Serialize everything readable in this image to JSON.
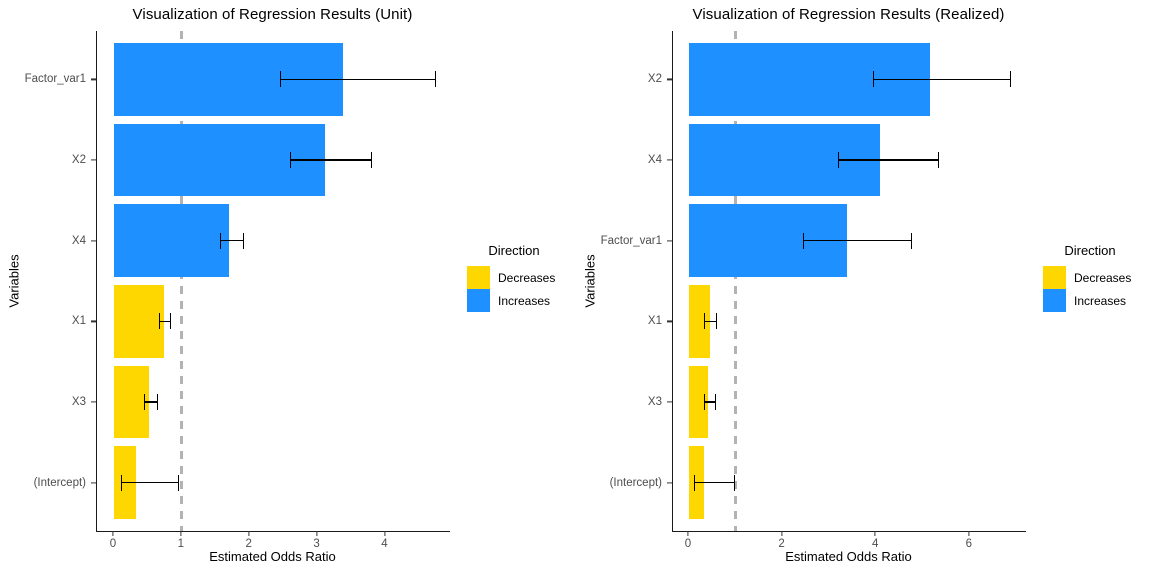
{
  "colors": {
    "Decreases": "#FFD700",
    "Increases": "#1E90FF",
    "reference_line": "#B3B3B3",
    "axis_line": "#1A1A1A",
    "tick_text": "#4D4D4D"
  },
  "chart_data": [
    {
      "type": "bar",
      "orientation": "horizontal",
      "title": "Visualization of Regression Results (Unit)",
      "xlabel": "Estimated Odds Ratio",
      "ylabel": "Variables",
      "legend_title": "Direction",
      "legend_position": "right",
      "legend_items": [
        {
          "label": "Decreases"
        },
        {
          "label": "Increases"
        }
      ],
      "x_ticks": [
        0,
        1,
        2,
        3,
        4
      ],
      "xlim": [
        -0.25,
        4.95
      ],
      "ref_line_x": 1,
      "grid": false,
      "categories": [
        "Factor_var1",
        "X2",
        "X4",
        "X1",
        "X3",
        "(Intercept)"
      ],
      "bars": [
        {
          "label": "Factor_var1",
          "value": 3.38,
          "ci_low": 2.44,
          "ci_high": 4.71,
          "direction": "Increases"
        },
        {
          "label": "X2",
          "value": 3.11,
          "ci_low": 2.59,
          "ci_high": 3.77,
          "direction": "Increases"
        },
        {
          "label": "X4",
          "value": 1.69,
          "ci_low": 1.56,
          "ci_high": 1.89,
          "direction": "Increases"
        },
        {
          "label": "X1",
          "value": 0.74,
          "ci_low": 0.66,
          "ci_high": 0.81,
          "direction": "Decreases"
        },
        {
          "label": "X3",
          "value": 0.52,
          "ci_low": 0.44,
          "ci_high": 0.62,
          "direction": "Decreases"
        },
        {
          "label": "(Intercept)",
          "value": 0.33,
          "ci_low": 0.11,
          "ci_high": 0.93,
          "direction": "Decreases"
        }
      ]
    },
    {
      "type": "bar",
      "orientation": "horizontal",
      "title": "Visualization of Regression Results (Realized)",
      "xlabel": "Estimated Odds Ratio",
      "ylabel": "Variables",
      "legend_title": "Direction",
      "legend_position": "right",
      "legend_items": [
        {
          "label": "Decreases"
        },
        {
          "label": "Increases"
        }
      ],
      "x_ticks": [
        0,
        2,
        4,
        6
      ],
      "xlim": [
        -0.34,
        7.2
      ],
      "ref_line_x": 1,
      "grid": false,
      "categories": [
        "X2",
        "X4",
        "Factor_var1",
        "X1",
        "X3",
        "(Intercept)"
      ],
      "bars": [
        {
          "label": "X2",
          "value": 5.15,
          "ci_low": 3.94,
          "ci_high": 6.84,
          "direction": "Increases"
        },
        {
          "label": "X4",
          "value": 4.08,
          "ci_low": 3.19,
          "ci_high": 5.3,
          "direction": "Increases"
        },
        {
          "label": "Factor_var1",
          "value": 3.37,
          "ci_low": 2.43,
          "ci_high": 4.72,
          "direction": "Increases"
        },
        {
          "label": "X1",
          "value": 0.45,
          "ci_low": 0.33,
          "ci_high": 0.56,
          "direction": "Decreases"
        },
        {
          "label": "X3",
          "value": 0.41,
          "ci_low": 0.32,
          "ci_high": 0.53,
          "direction": "Decreases"
        },
        {
          "label": "(Intercept)",
          "value": 0.32,
          "ci_low": 0.11,
          "ci_high": 0.95,
          "direction": "Decreases"
        }
      ]
    }
  ],
  "layout": {
    "rows_total_units": 6.2,
    "row_offset_units": 0.6,
    "bar_width_units": 0.9
  }
}
